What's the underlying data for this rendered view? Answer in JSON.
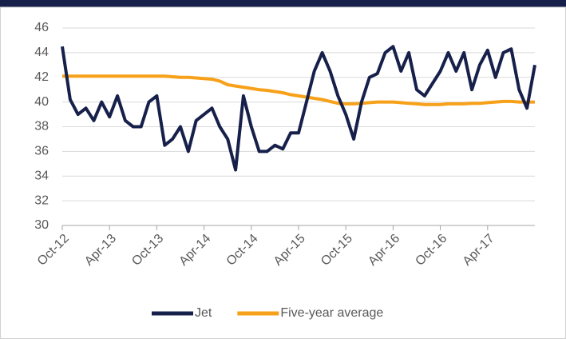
{
  "chart_data": {
    "type": "line",
    "x": [
      "2012-10",
      "2012-11",
      "2012-12",
      "2013-01",
      "2013-02",
      "2013-03",
      "2013-04",
      "2013-05",
      "2013-06",
      "2013-07",
      "2013-08",
      "2013-09",
      "2013-10",
      "2013-11",
      "2013-12",
      "2014-01",
      "2014-02",
      "2014-03",
      "2014-04",
      "2014-05",
      "2014-06",
      "2014-07",
      "2014-08",
      "2014-09",
      "2014-10",
      "2014-11",
      "2014-12",
      "2015-01",
      "2015-02",
      "2015-03",
      "2015-04",
      "2015-05",
      "2015-06",
      "2015-07",
      "2015-08",
      "2015-09",
      "2015-10",
      "2015-11",
      "2015-12",
      "2016-01",
      "2016-02",
      "2016-03",
      "2016-04",
      "2016-05",
      "2016-06",
      "2016-07",
      "2016-08",
      "2016-09",
      "2016-10",
      "2016-11",
      "2016-12",
      "2017-01",
      "2017-02",
      "2017-03",
      "2017-04",
      "2017-05",
      "2017-06",
      "2017-07",
      "2017-08",
      "2017-09",
      "2017-10"
    ],
    "series": [
      {
        "name": "Jet",
        "color": "#16204a",
        "values": [
          44.5,
          40.2,
          39,
          39.5,
          38.5,
          40,
          38.8,
          40.5,
          38.5,
          38,
          38,
          40,
          40.5,
          36.5,
          37,
          38,
          36,
          38.5,
          39,
          39.5,
          38,
          37,
          34.5,
          40.5,
          38,
          36,
          36,
          36.5,
          36.2,
          37.5,
          37.5,
          40,
          42.5,
          44,
          42.5,
          40.5,
          39,
          37,
          40,
          42,
          42.3,
          44,
          44.5,
          42.5,
          44,
          41,
          40.5,
          41.5,
          42.5,
          44,
          42.5,
          44,
          41,
          43,
          44.2,
          42,
          44,
          44.3,
          41,
          39.5,
          43
        ]
      },
      {
        "name": "Five-year average",
        "color": "#f7a11a",
        "values": [
          42.1,
          42.1,
          42.1,
          42.1,
          42.1,
          42.1,
          42.1,
          42.1,
          42.1,
          42.1,
          42.1,
          42.1,
          42.1,
          42.1,
          42.05,
          42,
          42,
          41.95,
          41.9,
          41.85,
          41.7,
          41.4,
          41.3,
          41.2,
          41.1,
          41,
          40.95,
          40.85,
          40.75,
          40.6,
          40.5,
          40.4,
          40.3,
          40.2,
          40.05,
          39.9,
          39.85,
          39.85,
          39.9,
          39.95,
          40,
          40,
          40,
          39.95,
          39.9,
          39.85,
          39.8,
          39.8,
          39.8,
          39.85,
          39.85,
          39.85,
          39.9,
          39.9,
          39.95,
          40,
          40.05,
          40.05,
          40,
          40,
          40
        ]
      }
    ],
    "xlim": [
      "2012-10",
      "2017-10"
    ],
    "xticks": [
      {
        "value": "2012-10",
        "label": "Oct-12"
      },
      {
        "value": "2013-04",
        "label": "Apr-13"
      },
      {
        "value": "2013-10",
        "label": "Oct-13"
      },
      {
        "value": "2014-04",
        "label": "Apr-14"
      },
      {
        "value": "2014-10",
        "label": "Oct-14"
      },
      {
        "value": "2015-04",
        "label": "Apr-15"
      },
      {
        "value": "2015-10",
        "label": "Oct-15"
      },
      {
        "value": "2016-04",
        "label": "Apr-16"
      },
      {
        "value": "2016-10",
        "label": "Oct-16"
      },
      {
        "value": "2017-04",
        "label": "Apr-17"
      }
    ],
    "ylim": [
      30,
      46
    ],
    "yticks": [
      30,
      32,
      34,
      36,
      38,
      40,
      42,
      44,
      46
    ],
    "grid": true,
    "legend": "bottom"
  }
}
